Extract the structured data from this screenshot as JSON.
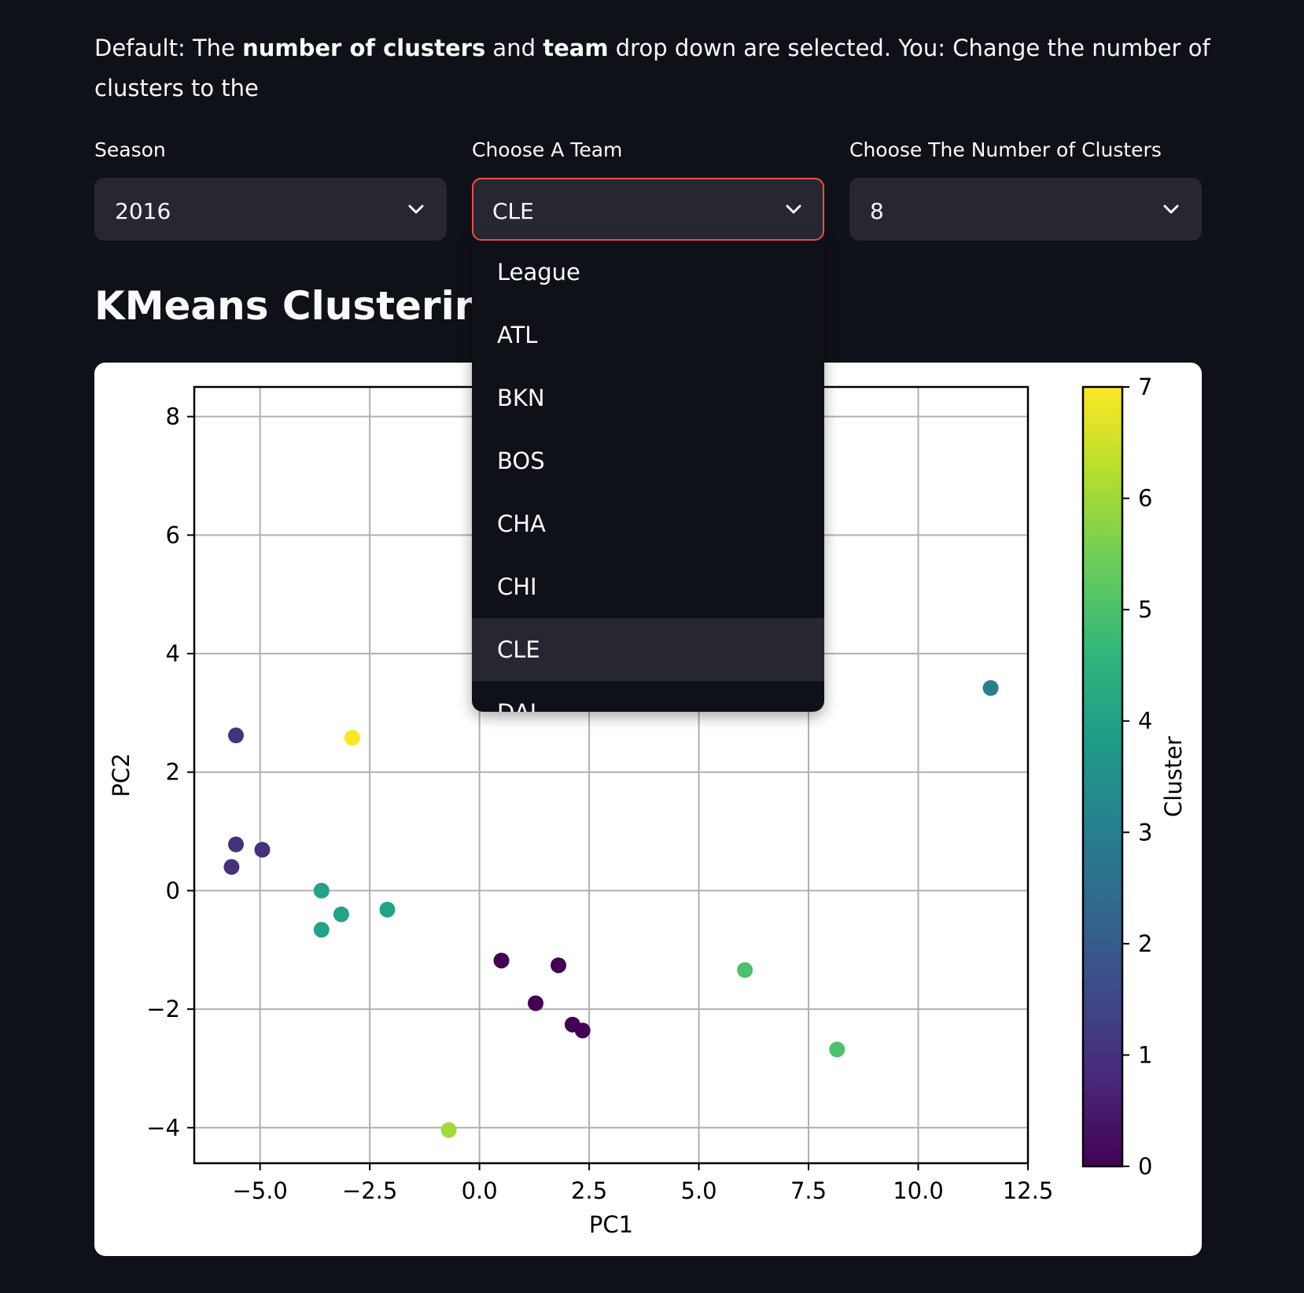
{
  "instructions": {
    "t1": "Default: The ",
    "b1": "number of clusters",
    "t2": " and ",
    "b2": "team",
    "t3": " drop down are selected. You: Change the number of clusters to the"
  },
  "filters": {
    "season": {
      "label": "Season",
      "value": "2016"
    },
    "team": {
      "label": "Choose A Team",
      "value": "CLE"
    },
    "clusters": {
      "label": "Choose The Number of Clusters",
      "value": "8"
    }
  },
  "heading": "KMeans Clustering –",
  "team_dropdown": {
    "options": [
      "League",
      "ATL",
      "BKN",
      "BOS",
      "CHA",
      "CHI",
      "CLE",
      "DAL"
    ],
    "selected": "CLE"
  },
  "colors": {
    "accent": "#ff4b4b",
    "background": "#0e1117",
    "widget": "#262730"
  },
  "icons": {
    "select_arrow": "chevron-down-icon"
  },
  "chart_data": {
    "type": "scatter",
    "title": "",
    "xlabel": "PC1",
    "ylabel": "PC2",
    "xlim": [
      -6.5,
      12.5
    ],
    "ylim": [
      -4.6,
      8.5
    ],
    "xticks": [
      -5.0,
      -2.5,
      0.0,
      2.5,
      5.0,
      7.5,
      10.0,
      12.5
    ],
    "xtick_labels": [
      "−5.0",
      "−2.5",
      "0.0",
      "2.5",
      "5.0",
      "7.5",
      "10.0",
      "12.5"
    ],
    "yticks": [
      -4,
      -2,
      0,
      2,
      4,
      6,
      8
    ],
    "ytick_labels": [
      "−4",
      "−2",
      "0",
      "2",
      "4",
      "6",
      "8"
    ],
    "grid": true,
    "colorbar": {
      "label": "Cluster",
      "min": 0,
      "max": 7,
      "ticks": [
        0,
        1,
        2,
        3,
        4,
        5,
        6,
        7
      ],
      "colormap": "viridis"
    },
    "points": [
      {
        "x": -5.55,
        "y": 2.62,
        "cluster": 1
      },
      {
        "x": -2.9,
        "y": 2.58,
        "cluster": 7
      },
      {
        "x": -5.55,
        "y": 0.78,
        "cluster": 1
      },
      {
        "x": -4.95,
        "y": 0.69,
        "cluster": 1
      },
      {
        "x": -5.65,
        "y": 0.4,
        "cluster": 1
      },
      {
        "x": -3.6,
        "y": 0.0,
        "cluster": 4
      },
      {
        "x": -3.15,
        "y": -0.4,
        "cluster": 4
      },
      {
        "x": -3.6,
        "y": -0.66,
        "cluster": 4
      },
      {
        "x": -2.1,
        "y": -0.32,
        "cluster": 4
      },
      {
        "x": 0.5,
        "y": -1.18,
        "cluster": 0
      },
      {
        "x": 1.8,
        "y": -1.26,
        "cluster": 0
      },
      {
        "x": 1.28,
        "y": -1.9,
        "cluster": 0
      },
      {
        "x": 2.12,
        "y": -2.26,
        "cluster": 0
      },
      {
        "x": 2.35,
        "y": -2.36,
        "cluster": 0
      },
      {
        "x": 6.05,
        "y": -1.34,
        "cluster": 5
      },
      {
        "x": 8.15,
        "y": -2.68,
        "cluster": 5
      },
      {
        "x": -0.7,
        "y": -4.04,
        "cluster": 6
      },
      {
        "x": 11.65,
        "y": 3.42,
        "cluster": 3
      }
    ]
  }
}
